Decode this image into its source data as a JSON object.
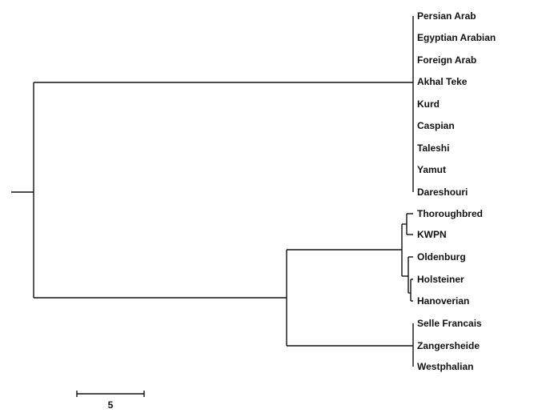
{
  "leaves": [
    "Persian Arab",
    "Egyptian Arabian",
    "Foreign Arab",
    "Akhal Teke",
    "Kurd",
    "Caspian",
    "Taleshi",
    "Yamut",
    "Dareshouri",
    "Thoroughbred",
    "KWPN",
    "Oldenburg",
    "Holsteiner",
    "Hanoverian",
    "Selle Francais",
    "Zangersheide",
    "Westphalian"
  ],
  "scale_bar": {
    "label": "5"
  }
}
